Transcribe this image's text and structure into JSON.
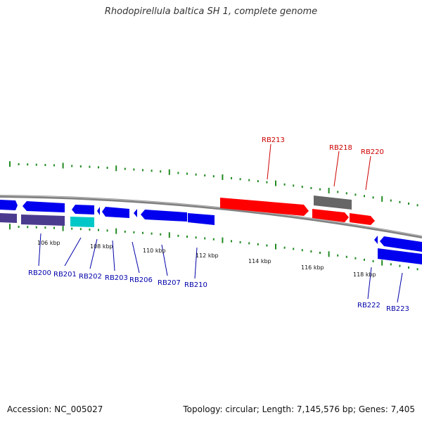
{
  "title": "Rhodopirellula baltica SH 1, complete genome",
  "accession": "Accession: NC_005027",
  "summary": "Topology: circular; Length: 7,145,576 bp; Genes: 7,405",
  "colors": {
    "backbone": "#808080",
    "tick": "#228b22",
    "forward_gene": "#0000ff",
    "highlight_gene": "#ff0000",
    "pseudo_gene": "#4b3b8f",
    "rna_gene": "#00c8c8",
    "grey_gene": "#666666",
    "label_blue": "#0000aa",
    "label_red": "#cc0000"
  },
  "scale_labels": [
    "106 kbp",
    "108 kbp",
    "110 kbp",
    "112 kbp",
    "114 kbp",
    "116 kbp",
    "118 kbp"
  ],
  "gene_labels_top": [
    "RB213",
    "RB218",
    "RB220"
  ],
  "gene_labels_bottom": [
    "RB200",
    "RB201",
    "RB202",
    "RB203",
    "RB206",
    "RB207",
    "RB210",
    "RB222",
    "RB223"
  ]
}
